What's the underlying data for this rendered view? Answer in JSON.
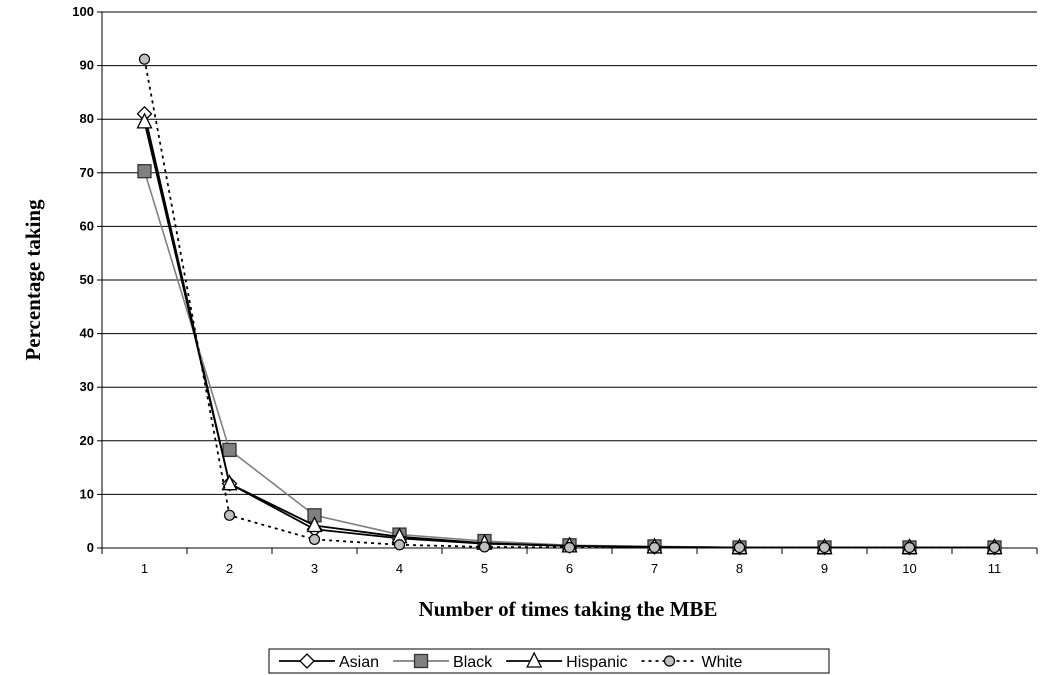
{
  "chart_data": {
    "type": "line",
    "title": "",
    "xlabel": "Number of times taking the MBE",
    "ylabel": "Percentage taking",
    "categories": [
      "1",
      "2",
      "3",
      "4",
      "5",
      "6",
      "7",
      "8",
      "9",
      "10",
      "11"
    ],
    "yticks": [
      "0",
      "10",
      "20",
      "30",
      "40",
      "50",
      "60",
      "70",
      "80",
      "90",
      "100"
    ],
    "ylim": [
      0,
      100
    ],
    "grid": "horizontal",
    "legend_position": "bottom",
    "series": [
      {
        "name": "Asian",
        "marker": "diamond-open",
        "line_style": "solid",
        "color": "#000000",
        "values": [
          81,
          12,
          3.5,
          1.8,
          0.8,
          0.4,
          0.2,
          0.1,
          0.1,
          0.1,
          0.1
        ]
      },
      {
        "name": "Black",
        "marker": "square-gray",
        "line_style": "solid",
        "color": "#808080",
        "values": [
          70.3,
          18.3,
          6.1,
          2.5,
          1.3,
          0.5,
          0.3,
          0.1,
          0.1,
          0.1,
          0.1
        ]
      },
      {
        "name": "Hispanic",
        "marker": "triangle-open",
        "line_style": "solid",
        "color": "#000000",
        "values": [
          79.5,
          12,
          4.2,
          2.1,
          0.9,
          0.4,
          0.2,
          0.1,
          0.1,
          0.1,
          0.1
        ]
      },
      {
        "name": "White",
        "marker": "circle-gray",
        "line_style": "dotted",
        "color": "#000000",
        "values": [
          91.2,
          6.1,
          1.6,
          0.6,
          0.2,
          0.1,
          0.1,
          0.1,
          0.1,
          0.1,
          0.1
        ]
      }
    ]
  }
}
